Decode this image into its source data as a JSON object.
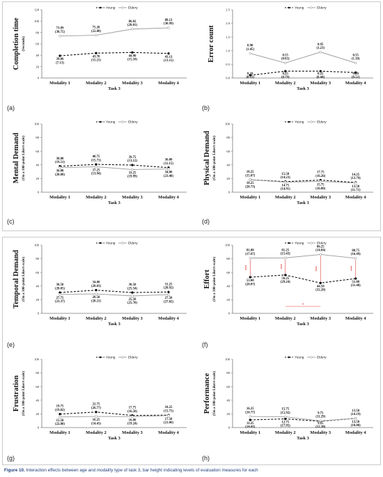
{
  "caption": {
    "prefix": "Figure 10.",
    "text": "Interaction effects between age and modality type of task 3, bar height indicating levels of evaluation measures for each"
  },
  "panels": [
    {
      "id": "a",
      "label": "(a)"
    },
    {
      "id": "b",
      "label": "(b)"
    },
    {
      "id": "c",
      "label": "(c)"
    },
    {
      "id": "d",
      "label": "(d)"
    },
    {
      "id": "e",
      "label": "(e)"
    },
    {
      "id": "f",
      "label": "(f)"
    },
    {
      "id": "g",
      "label": "(g)"
    },
    {
      "id": "h",
      "label": "(h)"
    }
  ],
  "chart_data": [
    {
      "id": "a",
      "type": "line",
      "ylabel": "Completion time",
      "ylabel2": "(Seconds)",
      "xlabel": "Task 3",
      "categories": [
        "Modality 1",
        "Modality 2",
        "Modality 3",
        "Modality 4"
      ],
      "ylim": [
        0,
        120
      ],
      "yticks": [
        0,
        20,
        40,
        60,
        80,
        100,
        120
      ],
      "legend": [
        "Young",
        "Eldery"
      ],
      "series": [
        {
          "name": "Young",
          "values": [
            39.06,
            43.7,
            44.9,
            43.13
          ],
          "labels": [
            "39.06",
            "43.70",
            "44.90",
            "43.13"
          ],
          "sd": [
            "(7.13)",
            "(11.21)",
            "(15.10)",
            "(13.15)"
          ]
        },
        {
          "name": "Eldery",
          "values": [
            73.89,
            75.2,
            86.02,
            88.13
          ],
          "labels": [
            "73.89",
            "75.20",
            "86.02",
            "88.13"
          ],
          "sd": [
            "(30.75)",
            "(22.88)",
            "(28.01)",
            "(30.99)"
          ]
        }
      ]
    },
    {
      "id": "b",
      "type": "line",
      "ylabel": "Error count",
      "ylabel2": "",
      "xlabel": "Task 3",
      "categories": [
        "Modality 1",
        "Modality 2",
        "Modality 3",
        "Modality 4"
      ],
      "ylim": [
        0,
        2.5
      ],
      "yticks": [
        0,
        0.5,
        1.0,
        1.5,
        2.0,
        2.5
      ],
      "legend": [
        "Young",
        "Eldery"
      ],
      "series": [
        {
          "name": "Young",
          "values": [
            0.1,
            0.25,
            0.25,
            0.2
          ],
          "labels": [
            "0.10",
            "0.25",
            "0.25",
            "0.20"
          ],
          "sd": [
            "(0.31)",
            "(0.79)",
            "(0.44)",
            "(0.52)"
          ]
        },
        {
          "name": "Eldery",
          "values": [
            0.9,
            0.55,
            0.95,
            0.55
          ],
          "labels": [
            "0.90",
            "0.55",
            "0.95",
            "0.55"
          ],
          "sd": [
            "(1.45)",
            "(0.83)",
            "(1.23)",
            "(1.10)"
          ]
        }
      ]
    },
    {
      "id": "c",
      "type": "line",
      "ylabel": "Mental Demand",
      "ylabel2": "(On a 100-point Likert scale)",
      "xlabel": "Task 3",
      "categories": [
        "Modality 1",
        "Modality 2",
        "Modality 3",
        "Modality 4"
      ],
      "ylim": [
        0,
        100
      ],
      "yticks": [
        0,
        20,
        40,
        60,
        80,
        100
      ],
      "legend": [
        "Young",
        "Eldery"
      ],
      "series": [
        {
          "name": "Young",
          "values": [
            38.0,
            40.75,
            39.75,
            36.0
          ],
          "labels": [
            "38.00",
            "40.75",
            "39.75",
            "36.00"
          ],
          "sd": [
            "(19.51)",
            "(15.71)",
            "(13.12)",
            "(11.15)"
          ]
        },
        {
          "name": "Eldery",
          "values": [
            36.0,
            37.25,
            33.25,
            34.0
          ],
          "labels": [
            "36.00",
            "37.25",
            "33.25",
            "34.00"
          ],
          "sd": [
            "(20.88)",
            "(13.94)",
            "(19.99)",
            "(23.48)"
          ]
        }
      ]
    },
    {
      "id": "d",
      "type": "line",
      "ylabel": "Physical Demand",
      "ylabel2": "(On a 100-point Likert scale)",
      "xlabel": "Task 3",
      "categories": [
        "Modality 1",
        "Modality 2",
        "Modality 3",
        "Modality 4"
      ],
      "ylim": [
        0,
        100
      ],
      "yticks": [
        0,
        20,
        40,
        60,
        80,
        100
      ],
      "legend": [
        "Young",
        "Eldery"
      ],
      "series": [
        {
          "name": "Young",
          "values": [
            18.25,
            15.5,
            17.75,
            14.25
          ],
          "labels": [
            "18.25",
            "15.50",
            "17.75",
            "14.25"
          ],
          "sd": [
            "(15.07)",
            "(14.23)",
            "(16.26)",
            "(13.79)"
          ]
        },
        {
          "name": "Eldery",
          "values": [
            18.25,
            14.75,
            15.75,
            13.5
          ],
          "labels": [
            "18.25",
            "14.75",
            "15.75",
            "13.50"
          ],
          "sd": [
            "(20.73)",
            "(14.91)",
            "(16.00)",
            "(11.71)"
          ]
        }
      ]
    },
    {
      "id": "e",
      "type": "line",
      "ylabel": "Temporal Demand",
      "ylabel2": "(On a 100-point Likert scale)",
      "xlabel": "Task 3",
      "categories": [
        "Modality 1",
        "Modality 2",
        "Modality 3",
        "Modality 4"
      ],
      "ylim": [
        0,
        100
      ],
      "yticks": [
        0,
        20,
        40,
        60,
        80,
        100
      ],
      "legend": [
        "Young",
        "Eldery"
      ],
      "series": [
        {
          "name": "Young",
          "values": [
            30.5,
            34.0,
            30.5,
            31.25
          ],
          "labels": [
            "30.50",
            "34.00",
            "30.50",
            "31.25"
          ],
          "sd": [
            "(20.05)",
            "(20.03)",
            "(25.54)",
            "(28.92)"
          ]
        },
        {
          "name": "Eldery",
          "values": [
            27.75,
            28.5,
            25.5,
            27.5
          ],
          "labels": [
            "27.75",
            "28.50",
            "25.50",
            "27.50"
          ],
          "sd": [
            "(23.37)",
            "(20.21)",
            "(25.70)",
            "(27.02)"
          ]
        }
      ]
    },
    {
      "id": "f",
      "type": "line",
      "ylabel": "Effort",
      "ylabel2": "(On a 100-point Likert scale)",
      "xlabel": "Task 3",
      "categories": [
        "Modality 1",
        "Modality 2",
        "Modality 3",
        "Modality 4"
      ],
      "ylim": [
        0,
        100
      ],
      "yticks": [
        0,
        20,
        40,
        60,
        80,
        100
      ],
      "legend": [
        "Young",
        "Eldery"
      ],
      "series": [
        {
          "name": "Young",
          "values": [
            53.0,
            56.25,
            44.5,
            51.0
          ],
          "labels": [
            "53.00",
            "56.25",
            "44.50",
            "51.00"
          ],
          "sd": [
            "(28.07)",
            "(29.24)",
            "(32.28)",
            "(31.48)"
          ]
        },
        {
          "name": "Eldery",
          "values": [
            81.0,
            81.25,
            86.25,
            80.75
          ],
          "labels": [
            "81.00",
            "81.25",
            "86.25",
            "80.75"
          ],
          "sd": [
            "(17.67)",
            "(15.43)",
            "(14.04)",
            "(16.49)"
          ]
        }
      ],
      "significance": {
        "vertical": [
          0,
          1,
          2,
          3
        ],
        "vertical_label": "***",
        "bracket": [
          1,
          2
        ],
        "bracket_label": "*"
      }
    },
    {
      "id": "g",
      "type": "line",
      "ylabel": "Frustration",
      "ylabel2": "(On a 100-point Likert scale)",
      "xlabel": "Task 3",
      "categories": [
        "Modality 1",
        "Modality 2",
        "Modality 3",
        "Modality 4"
      ],
      "ylim": [
        0,
        100
      ],
      "yticks": [
        0,
        20,
        40,
        60,
        80,
        100
      ],
      "legend": [
        "Young",
        "Eldery"
      ],
      "series": [
        {
          "name": "Young",
          "values": [
            19.75,
            22.75,
            17.75,
            18.25
          ],
          "labels": [
            "19.75",
            "22.75",
            "17.75",
            "18.25"
          ],
          "sd": [
            "(19.02)",
            "(26.77)",
            "(16.58)",
            "(15.75)"
          ]
        },
        {
          "name": "Eldery",
          "values": [
            15.5,
            16.25,
            16.0,
            17.5
          ],
          "labels": [
            "15.50",
            "16.25",
            "16.00",
            "17.50"
          ],
          "sd": [
            "(22.00)",
            "(14.41)",
            "(19.24)",
            "(21.06)"
          ]
        }
      ]
    },
    {
      "id": "h",
      "type": "line",
      "ylabel": "Performance",
      "ylabel2": "(On a 100-point Likert scale)",
      "xlabel": "Task 3",
      "categories": [
        "Modality 1",
        "Modality 2",
        "Modality 3",
        "Modality 4"
      ],
      "ylim": [
        0,
        100
      ],
      "yticks": [
        0,
        20,
        40,
        60,
        80,
        100
      ],
      "legend": [
        "Young",
        "Eldery"
      ],
      "series": [
        {
          "name": "Young",
          "values": [
            11.25,
            12.75,
            9.25,
            13.5
          ],
          "labels": [
            "11.25",
            "12.75",
            "9.25",
            "13.50"
          ],
          "sd": [
            "(14.41)",
            "(17.95)",
            "(12.30)",
            "(14.19)"
          ]
        },
        {
          "name": "Eldery",
          "values": [
            16.25,
            15.75,
            9.75,
            13.5
          ],
          "labels": [
            "16.25",
            "15.75",
            "9.75",
            "13.50"
          ],
          "sd": [
            "(16.77)",
            "(15.92)",
            "(11.29)",
            "(18.00)"
          ]
        }
      ]
    }
  ]
}
